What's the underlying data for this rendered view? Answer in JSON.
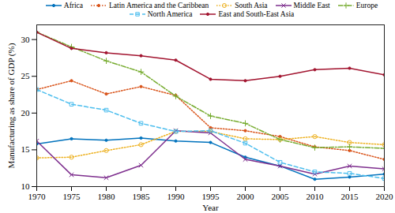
{
  "chart_data": {
    "type": "line",
    "x_label": "Year",
    "y_label": "Manufacturing as share of GDP (%)",
    "x": [
      1970,
      1975,
      1980,
      1985,
      1990,
      1995,
      2000,
      2005,
      2010,
      2015,
      2020
    ],
    "xlim": [
      1970,
      2020
    ],
    "xticks": [
      1970,
      1975,
      1980,
      1985,
      1990,
      1995,
      2000,
      2005,
      2010,
      2015,
      2020
    ],
    "ylim": [
      10,
      32
    ],
    "yticks": [
      10,
      15,
      20,
      25,
      30
    ],
    "grid": false,
    "legend": "top-right",
    "series": [
      {
        "name": "Africa",
        "color": "#0072BD",
        "line_style": "solid",
        "marker": "point",
        "values": [
          15.8,
          16.5,
          16.3,
          16.6,
          16.2,
          16.0,
          14.0,
          12.8,
          11.0,
          11.3,
          11.7
        ]
      },
      {
        "name": "Latin America and the Caribbean",
        "color": "#D95319",
        "line_style": "dotted",
        "marker": "point",
        "values": [
          23.2,
          24.4,
          22.6,
          23.6,
          22.4,
          18.0,
          17.6,
          16.8,
          15.4,
          14.9,
          13.7
        ]
      },
      {
        "name": "South Asia",
        "color": "#EDB120",
        "line_style": "dotted",
        "marker": "circle",
        "values": [
          13.9,
          14.0,
          14.9,
          15.7,
          17.5,
          17.5,
          16.5,
          16.4,
          16.8,
          16.0,
          15.7
        ]
      },
      {
        "name": "Middle East",
        "color": "#7E2F8E",
        "line_style": "solid",
        "marker": "x",
        "values": [
          16.2,
          11.6,
          11.2,
          12.9,
          17.6,
          17.3,
          13.7,
          12.8,
          11.7,
          12.8,
          12.4
        ]
      },
      {
        "name": "Europe",
        "color": "#77AC30",
        "line_style": "dashdot",
        "marker": "plus",
        "values": [
          31.0,
          29.0,
          27.1,
          25.6,
          22.3,
          19.6,
          18.6,
          16.4,
          15.3,
          15.4,
          15.2
        ]
      },
      {
        "name": "North America",
        "color": "#4DBEEE",
        "line_style": "dashed",
        "marker": "square",
        "values": [
          23.2,
          21.2,
          20.4,
          18.6,
          17.5,
          17.6,
          15.9,
          13.3,
          12.0,
          11.8,
          11.1
        ]
      },
      {
        "name": "East and South-East Asia",
        "color": "#A2142F",
        "line_style": "solid",
        "marker": "point",
        "values": [
          31.0,
          28.8,
          28.2,
          27.8,
          27.2,
          24.6,
          24.4,
          25.0,
          25.9,
          26.1,
          25.2
        ]
      }
    ]
  }
}
